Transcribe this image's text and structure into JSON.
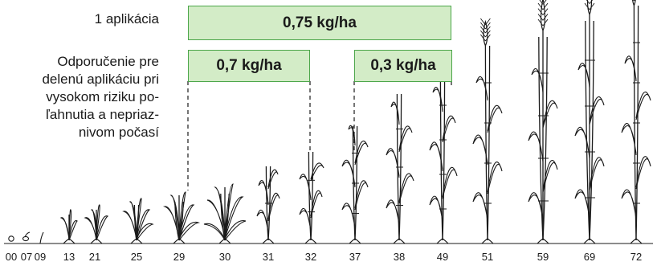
{
  "labels": {
    "single": "1 aplikácia",
    "split": "Odporučenie pre\ndelenú aplikáciu pri\nvysokom riziku po-\nľahnutia a nepriaz-\nnivom počasí"
  },
  "doses": {
    "single": "0,75 kg/ha",
    "split_first": "0,7 kg/ha",
    "split_second": "0,3 kg/ha"
  },
  "bbch_stages": [
    "00",
    "07",
    "09",
    "13",
    "21",
    "25",
    "29",
    "30",
    "31",
    "32",
    "37",
    "38",
    "49",
    "51",
    "59",
    "69",
    "72"
  ],
  "colors": {
    "box_fill": "#d3ecc7",
    "box_border": "#4ca64a",
    "plant_line": "#1a1a1a"
  }
}
